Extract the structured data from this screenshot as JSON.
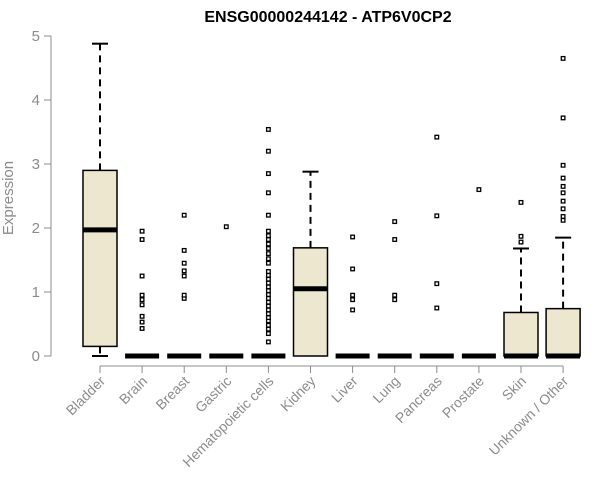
{
  "chart_data": {
    "type": "boxplot",
    "title": "ENSG00000244142 - ATP6V0CP2",
    "xlabel": "",
    "ylabel": "Expression",
    "ylim": [
      0,
      5
    ],
    "yticks": [
      0,
      1,
      2,
      3,
      4,
      5
    ],
    "ytick_labels": [
      "0",
      "1",
      "2",
      "3",
      "4",
      "5"
    ],
    "colors": {
      "box_fill": "#ede7cf",
      "box_stroke": "#000000",
      "axis": "#8c8c8c"
    },
    "categories": [
      "Bladder",
      "Brain",
      "Breast",
      "Gastric",
      "Hematopoietic cells",
      "Kidney",
      "Liver",
      "Lung",
      "Pancreas",
      "Prostate",
      "Skin",
      "Unknown / Other"
    ],
    "boxes": [
      {
        "category": "Bladder",
        "q1": 0.15,
        "median": 1.97,
        "q3": 2.9,
        "whisker_low": 0.0,
        "whisker_high": 4.88,
        "outliers": []
      },
      {
        "category": "Brain",
        "q1": 0.0,
        "median": 0.0,
        "q3": 0.0,
        "whisker_low": 0.0,
        "whisker_high": 0.0,
        "outliers": [
          0.43,
          0.53,
          0.62,
          0.8,
          0.88,
          0.95,
          1.25,
          1.82,
          1.95
        ]
      },
      {
        "category": "Breast",
        "q1": 0.0,
        "median": 0.0,
        "q3": 0.0,
        "whisker_low": 0.0,
        "whisker_high": 0.0,
        "outliers": [
          0.9,
          0.95,
          1.25,
          1.33,
          1.45,
          1.65,
          2.2
        ]
      },
      {
        "category": "Gastric",
        "q1": 0.0,
        "median": 0.0,
        "q3": 0.0,
        "whisker_low": 0.0,
        "whisker_high": 0.0,
        "outliers": [
          2.02
        ]
      },
      {
        "category": "Hematopoietic cells",
        "q1": 0.0,
        "median": 0.0,
        "q3": 0.0,
        "whisker_low": 0.0,
        "whisker_high": 0.0,
        "outliers": [
          0.22,
          0.35,
          0.42,
          0.48,
          0.55,
          0.6,
          0.66,
          0.72,
          0.78,
          0.84,
          0.9,
          0.96,
          1.02,
          1.08,
          1.14,
          1.2,
          1.26,
          1.32,
          1.45,
          1.52,
          1.6,
          1.68,
          1.75,
          1.82,
          1.88,
          1.95,
          2.2,
          2.55,
          2.85,
          3.2,
          3.54
        ]
      },
      {
        "category": "Kidney",
        "q1": 0.0,
        "median": 1.05,
        "q3": 1.69,
        "whisker_low": 0.0,
        "whisker_high": 2.88,
        "outliers": []
      },
      {
        "category": "Liver",
        "q1": 0.0,
        "median": 0.0,
        "q3": 0.0,
        "whisker_low": 0.0,
        "whisker_high": 0.0,
        "outliers": [
          0.72,
          0.88,
          0.95,
          1.36,
          1.86
        ]
      },
      {
        "category": "Lung",
        "q1": 0.0,
        "median": 0.0,
        "q3": 0.0,
        "whisker_low": 0.0,
        "whisker_high": 0.0,
        "outliers": [
          0.88,
          0.95,
          1.82,
          2.1
        ]
      },
      {
        "category": "Pancreas",
        "q1": 0.0,
        "median": 0.0,
        "q3": 0.0,
        "whisker_low": 0.0,
        "whisker_high": 0.0,
        "outliers": [
          0.75,
          1.13,
          2.19,
          3.42
        ]
      },
      {
        "category": "Prostate",
        "q1": 0.0,
        "median": 0.0,
        "q3": 0.0,
        "whisker_low": 0.0,
        "whisker_high": 0.0,
        "outliers": [
          2.6
        ]
      },
      {
        "category": "Skin",
        "q1": 0.0,
        "median": 0.0,
        "q3": 0.68,
        "whisker_low": 0.0,
        "whisker_high": 1.68,
        "outliers": [
          1.78,
          1.87,
          2.4
        ]
      },
      {
        "category": "Unknown / Other",
        "q1": 0.0,
        "median": 0.0,
        "q3": 0.74,
        "whisker_low": 0.0,
        "whisker_high": 1.85,
        "outliers": [
          2.12,
          2.18,
          2.3,
          2.42,
          2.55,
          2.65,
          2.78,
          2.98,
          3.72,
          4.65
        ]
      }
    ]
  }
}
